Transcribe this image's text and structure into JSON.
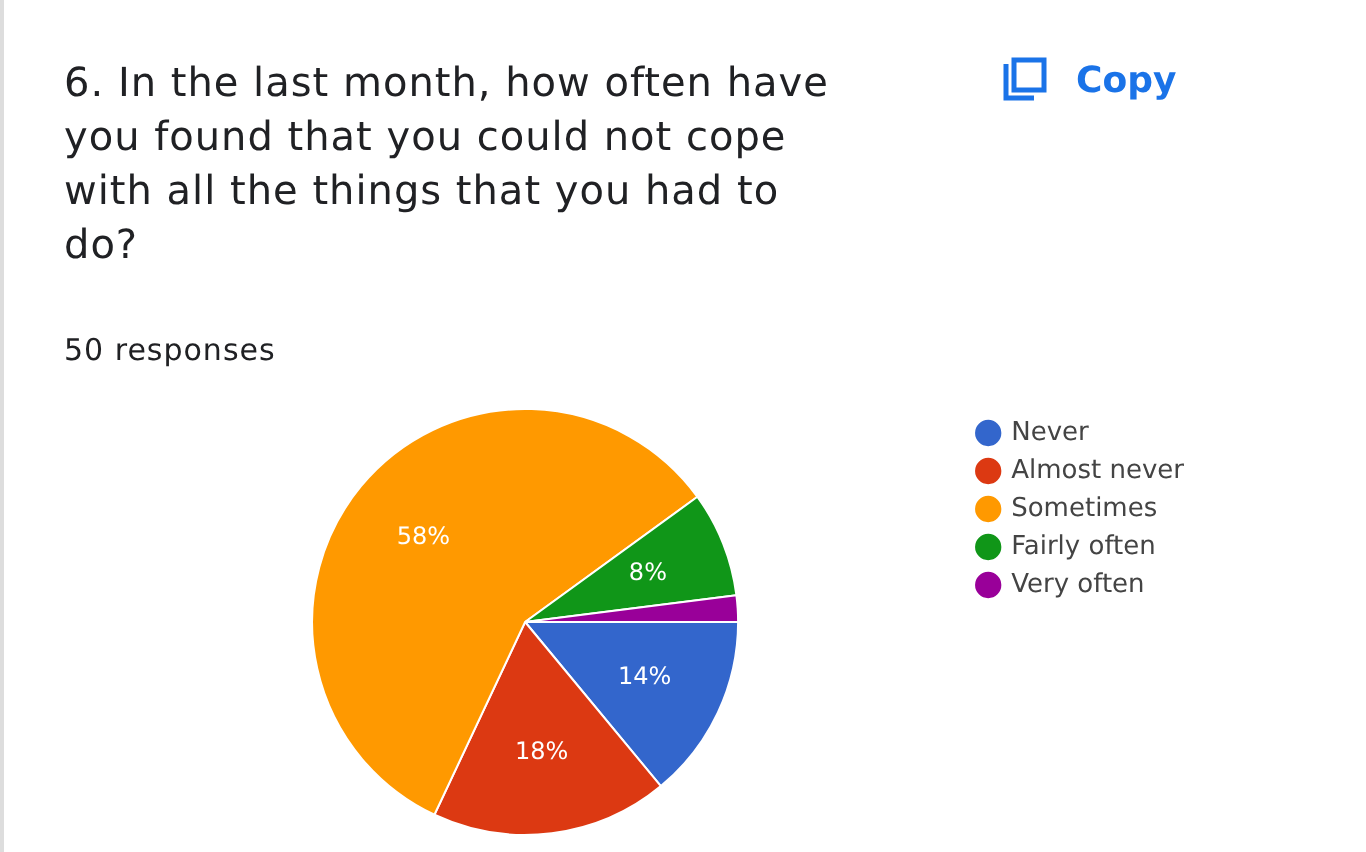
{
  "chart_data": {
    "type": "pie",
    "title": "6. In the last month, how often have you found that you could not cope with all the things that you had to do?",
    "subtitle": "50 responses",
    "categories": [
      "Never",
      "Almost never",
      "Sometimes",
      "Fairly often",
      "Very often"
    ],
    "values": [
      14,
      18,
      58,
      8,
      2
    ],
    "colors": [
      "#3366cc",
      "#dc3912",
      "#ff9900",
      "#109618",
      "#990099"
    ],
    "value_labels": [
      "14%",
      "18%",
      "58%",
      "8%",
      null
    ],
    "legend": "right",
    "annotations": [
      "Copy"
    ]
  }
}
